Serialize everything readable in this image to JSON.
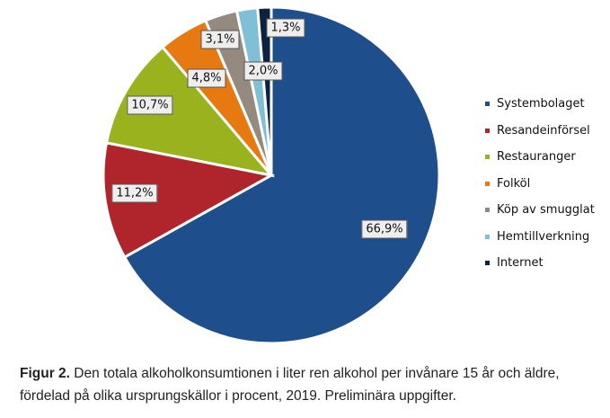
{
  "chart_data": {
    "type": "pie",
    "title": "",
    "categories": [
      "Systembolaget",
      "Resandeinförsel",
      "Restauranger",
      "Folköl",
      "Köp av smugglat",
      "Hemtillverkning",
      "Internet"
    ],
    "values": [
      66.9,
      11.2,
      10.7,
      4.8,
      3.1,
      2.0,
      1.3
    ],
    "data_labels": [
      "66,9%",
      "11,2%",
      "10,7%",
      "4,8%",
      "3,1%",
      "2,0%",
      "1,3%"
    ],
    "colors": [
      "#1f4e8c",
      "#b0242c",
      "#9bb21f",
      "#e6790f",
      "#948a80",
      "#7fc0d6",
      "#0d2240"
    ],
    "start": "12 o'clock, clockwise",
    "legend_position": "right"
  },
  "caption": {
    "bold": "Figur 2.",
    "text": " Den totala alkoholkonsumtionen i liter ren alkohol per invånare 15 år och äldre, fördelad på olika ursprungskällor i procent, 2019. Preliminära uppgifter."
  }
}
